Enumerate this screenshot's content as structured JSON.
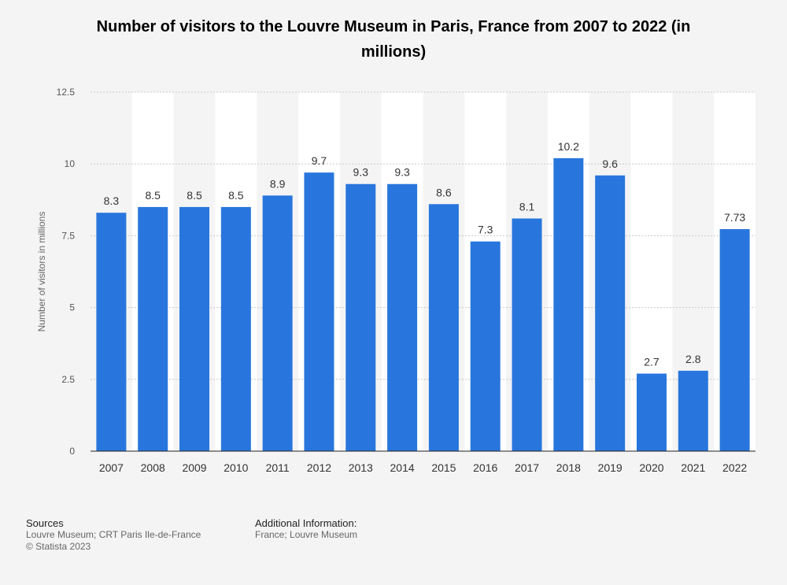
{
  "title": "Number of visitors to the Louvre Museum in Paris, France from 2007 to 2022 (in millions)",
  "footer": {
    "sources_heading": "Sources",
    "sources_text": "Louvre Museum; CRT Paris Ile-de-France",
    "copyright": "© Statista 2023",
    "info_heading": "Additional Information:",
    "info_text": "France; Louvre Museum"
  },
  "colors": {
    "bar": "#2876dd",
    "background": "#f4f4f4",
    "band": "#ffffff"
  },
  "chart_data": {
    "type": "bar",
    "title": "Number of visitors to the Louvre Museum in Paris, France from 2007 to 2022 (in millions)",
    "xlabel": "",
    "ylabel": "Number of visitors in millions",
    "categories": [
      "2007",
      "2008",
      "2009",
      "2010",
      "2011",
      "2012",
      "2013",
      "2014",
      "2015",
      "2016",
      "2017",
      "2018",
      "2019",
      "2020",
      "2021",
      "2022"
    ],
    "values": [
      8.3,
      8.5,
      8.5,
      8.5,
      8.9,
      9.7,
      9.3,
      9.3,
      8.6,
      7.3,
      8.1,
      10.2,
      9.6,
      2.7,
      2.8,
      7.73
    ],
    "value_labels": [
      "8.3",
      "8.5",
      "8.5",
      "8.5",
      "8.9",
      "9.7",
      "9.3",
      "9.3",
      "8.6",
      "7.3",
      "8.1",
      "10.2",
      "9.6",
      "2.7",
      "2.8",
      "7.73"
    ],
    "ylim": [
      0,
      12.5
    ],
    "yticks": [
      0,
      2.5,
      5,
      7.5,
      10,
      12.5
    ],
    "ytick_labels": [
      "0",
      "2.5",
      "5",
      "7.5",
      "10",
      "12.5"
    ],
    "grid": true,
    "legend": "none"
  }
}
